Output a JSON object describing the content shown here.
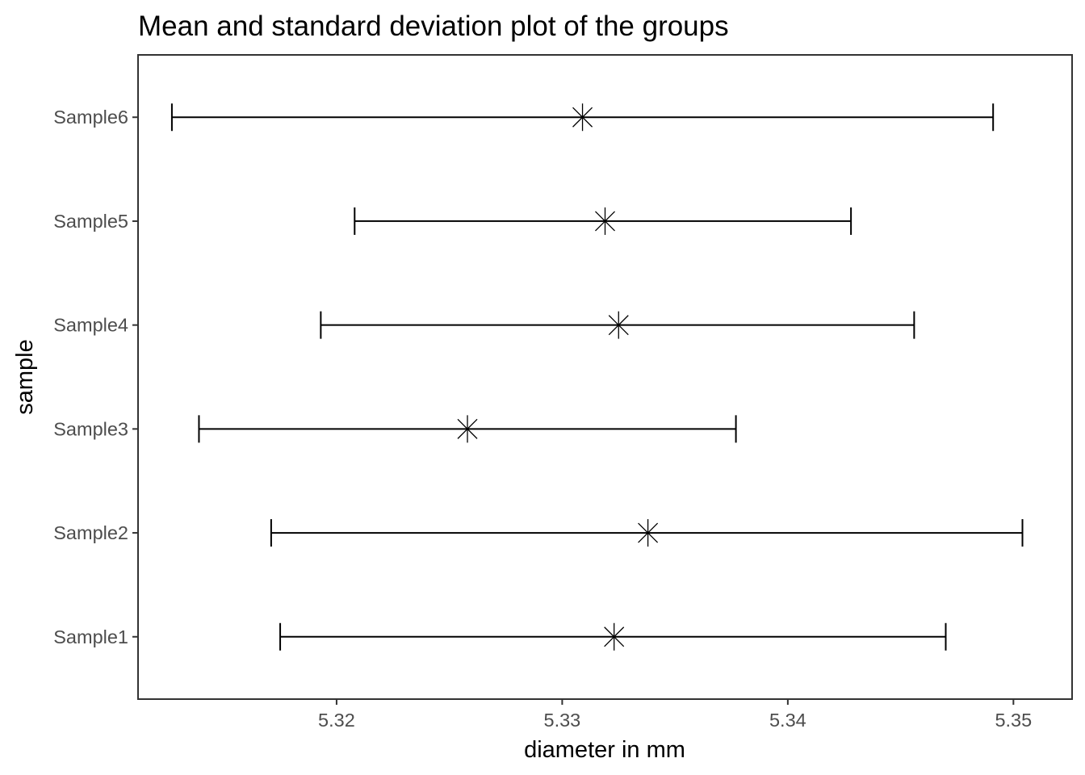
{
  "chart_data": {
    "type": "errorbar",
    "title": "Mean and standard deviation plot of the groups",
    "xlabel": "diameter in mm",
    "ylabel": "sample",
    "xlim": [
      5.3112,
      5.3526
    ],
    "xticks": [
      5.32,
      5.33,
      5.34,
      5.35
    ],
    "xtick_labels": [
      "5.32",
      "5.33",
      "5.34",
      "5.35"
    ],
    "categories": [
      "Sample1",
      "Sample2",
      "Sample3",
      "Sample4",
      "Sample5",
      "Sample6"
    ],
    "series": [
      {
        "marker": "asterisk",
        "mean": [
          5.3323,
          5.3338,
          5.3258,
          5.3325,
          5.3319,
          5.3309
        ],
        "lower": [
          5.3175,
          5.3171,
          5.3139,
          5.3193,
          5.3208,
          5.3127
        ],
        "upper": [
          5.347,
          5.3504,
          5.3377,
          5.3456,
          5.3428,
          5.3491
        ]
      }
    ],
    "grid": false,
    "legend": "none"
  }
}
